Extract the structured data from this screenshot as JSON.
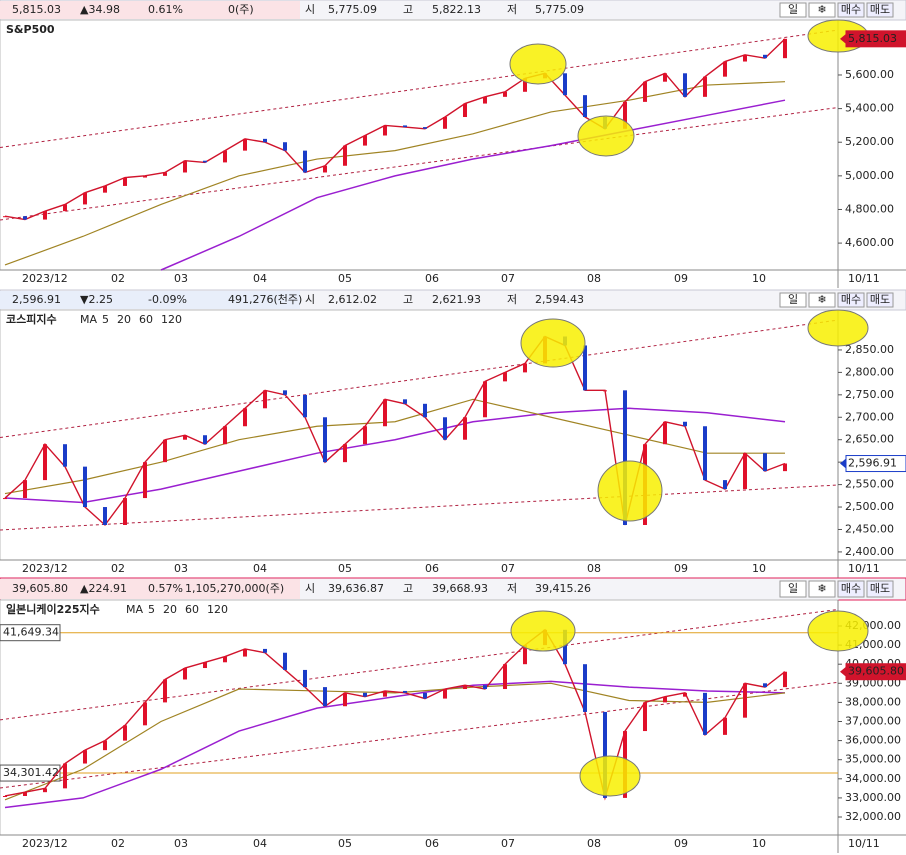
{
  "panels": [
    {
      "title": "S&P500",
      "quote": {
        "price": "5,815.03",
        "change": "▲34.98",
        "pct": "0.61%",
        "volume": "0(주)",
        "open_label": "시",
        "open": "5,775.09",
        "high_label": "고",
        "high": "5,822.13",
        "low_label": "저",
        "low": "5,775.09"
      },
      "buttons": [
        "일",
        "❄",
        "매수",
        "매도"
      ],
      "ylim": [
        4440,
        5927
      ],
      "yticks": [
        {
          "value": 4600,
          "label": "4,600.00"
        },
        {
          "value": 4800,
          "label": "4,800.00"
        },
        {
          "value": 5000,
          "label": "5,000.00"
        },
        {
          "value": 5200,
          "label": "5,200.00"
        },
        {
          "value": 5400,
          "label": "5,400.00"
        },
        {
          "value": 5600,
          "label": "5,600.00"
        }
      ],
      "x_labels": [
        "2023/12",
        "02",
        "03",
        "04",
        "05",
        "06",
        "07",
        "08",
        "09",
        "10"
      ],
      "date_label": "10/11",
      "last": {
        "value": 5815.03,
        "label": "5,815.03"
      },
      "close": {
        "color": "#d0142c",
        "values": [
          4760,
          4740,
          4790,
          4830,
          4900,
          4940,
          4990,
          5000,
          5020,
          5090,
          5080,
          5150,
          5220,
          5200,
          5150,
          5020,
          5060,
          5180,
          5240,
          5300,
          5290,
          5280,
          5350,
          5430,
          5470,
          5500,
          5580,
          5610,
          5480,
          5350,
          5280,
          5440,
          5560,
          5610,
          5470,
          5590,
          5680,
          5720,
          5700,
          5815
        ]
      },
      "ma60": {
        "color": "#a08424",
        "values": [
          4470,
          4640,
          4830,
          5000,
          5100,
          5150,
          5250,
          5380,
          5450,
          5540,
          5560
        ]
      },
      "ma120": {
        "color": "#9a1fd0",
        "values": [
          null,
          null,
          4440,
          4640,
          4870,
          5000,
          5100,
          5180,
          5270,
          5360,
          5450
        ]
      }
    },
    {
      "title": "코스피지수",
      "ma_labels": [
        "MA",
        "5",
        "20",
        "60",
        "120"
      ],
      "quote": {
        "price": "2,596.91",
        "change": "▼2.25",
        "pct": "-0.09%",
        "volume": "491,276(천주)",
        "open_label": "시",
        "open": "2,612.02",
        "high_label": "고",
        "high": "2,621.93",
        "low_label": "저",
        "low": "2,594.43"
      },
      "buttons": [
        "일",
        "❄",
        "매수",
        "매도"
      ],
      "ylim": [
        2382,
        2939
      ],
      "yticks": [
        {
          "value": 2400,
          "label": "2,400.00"
        },
        {
          "value": 2450,
          "label": "2,450.00"
        },
        {
          "value": 2500,
          "label": "2,500.00"
        },
        {
          "value": 2550,
          "label": "2,550.00"
        },
        {
          "value": 2600,
          "label": "2,600.00"
        },
        {
          "value": 2650,
          "label": "2,650.00"
        },
        {
          "value": 2700,
          "label": "2,700.00"
        },
        {
          "value": 2750,
          "label": "2,750.00"
        },
        {
          "value": 2800,
          "label": "2,800.00"
        },
        {
          "value": 2850,
          "label": "2,850.00"
        }
      ],
      "x_labels": [
        "2023/12",
        "02",
        "03",
        "04",
        "05",
        "06",
        "07",
        "08",
        "09",
        "10"
      ],
      "date_label": "10/11",
      "last": {
        "value": 2596.91,
        "label": "2,596.91"
      },
      "close": {
        "color": "#d0142c",
        "values": [
          2520,
          2560,
          2640,
          2590,
          2500,
          2460,
          2520,
          2600,
          2650,
          2660,
          2640,
          2680,
          2720,
          2760,
          2750,
          2700,
          2600,
          2640,
          2680,
          2740,
          2730,
          2700,
          2650,
          2700,
          2780,
          2800,
          2820,
          2880,
          2860,
          2760,
          2760,
          2460,
          2640,
          2690,
          2680,
          2560,
          2540,
          2620,
          2580,
          2597
        ]
      },
      "ma60": {
        "color": "#a08424",
        "values": [
          2530,
          2560,
          2600,
          2650,
          2680,
          2690,
          2740,
          2700,
          2660,
          2620,
          2620
        ]
      },
      "ma120": {
        "color": "#9a1fd0",
        "values": [
          2520,
          2510,
          2540,
          2580,
          2620,
          2650,
          2690,
          2710,
          2720,
          2710,
          2690
        ]
      }
    },
    {
      "title": "일본니케이225지수",
      "ma_labels": [
        "MA",
        "5",
        "20",
        "60",
        "120"
      ],
      "quote": {
        "price": "39,605.80",
        "change": "▲224.91",
        "pct": "0.57%",
        "volume": "1,105,270,000(주)",
        "open_label": "시",
        "open": "39,636.87",
        "high_label": "고",
        "high": "39,668.93",
        "low_label": "저",
        "low": "39,415.26"
      },
      "buttons": [
        "일",
        "❄",
        "매수",
        "매도"
      ],
      "ylim": [
        31058,
        43361
      ],
      "yticks": [
        {
          "value": 32000,
          "label": "32,000.00"
        },
        {
          "value": 33000,
          "label": "33,000.00"
        },
        {
          "value": 34000,
          "label": "34,000.00"
        },
        {
          "value": 35000,
          "label": "35,000.00"
        },
        {
          "value": 36000,
          "label": "36,000.00"
        },
        {
          "value": 37000,
          "label": "37,000.00"
        },
        {
          "value": 38000,
          "label": "38,000.00"
        },
        {
          "value": 39000,
          "label": "39,000.00"
        },
        {
          "value": 40000,
          "label": "40,000.00"
        },
        {
          "value": 41000,
          "label": "41,000.00"
        },
        {
          "value": 42000,
          "label": "42,000.00"
        }
      ],
      "x_labels": [
        "2023/12",
        "02",
        "03",
        "04",
        "05",
        "06",
        "07",
        "08",
        "09",
        "10"
      ],
      "date_label": "10/11",
      "last": {
        "value": 39605.8,
        "label": "39,605.80"
      },
      "hlines": [
        {
          "value": 41649.34,
          "label": "41,649.34"
        },
        {
          "value": 34301.42,
          "label": "34,301.42"
        }
      ],
      "close": {
        "color": "#d0142c",
        "values": [
          33100,
          33300,
          33500,
          34800,
          35500,
          36000,
          36800,
          38000,
          39200,
          39800,
          40100,
          40400,
          40800,
          40600,
          39700,
          38800,
          37800,
          38500,
          38300,
          38600,
          38500,
          38200,
          38700,
          38900,
          38700,
          40000,
          41000,
          41800,
          40000,
          37500,
          33000,
          36500,
          38000,
          38300,
          38500,
          36300,
          37200,
          39000,
          38800,
          39606
        ]
      },
      "ma60": {
        "color": "#a08424",
        "values": [
          32900,
          34500,
          37000,
          38700,
          38600,
          38500,
          38800,
          39000,
          38100,
          38000,
          38500
        ]
      },
      "ma120": {
        "color": "#9a1fd0",
        "values": [
          32500,
          33000,
          34500,
          36500,
          37700,
          38300,
          38900,
          39100,
          38800,
          38600,
          38500
        ]
      }
    }
  ]
}
